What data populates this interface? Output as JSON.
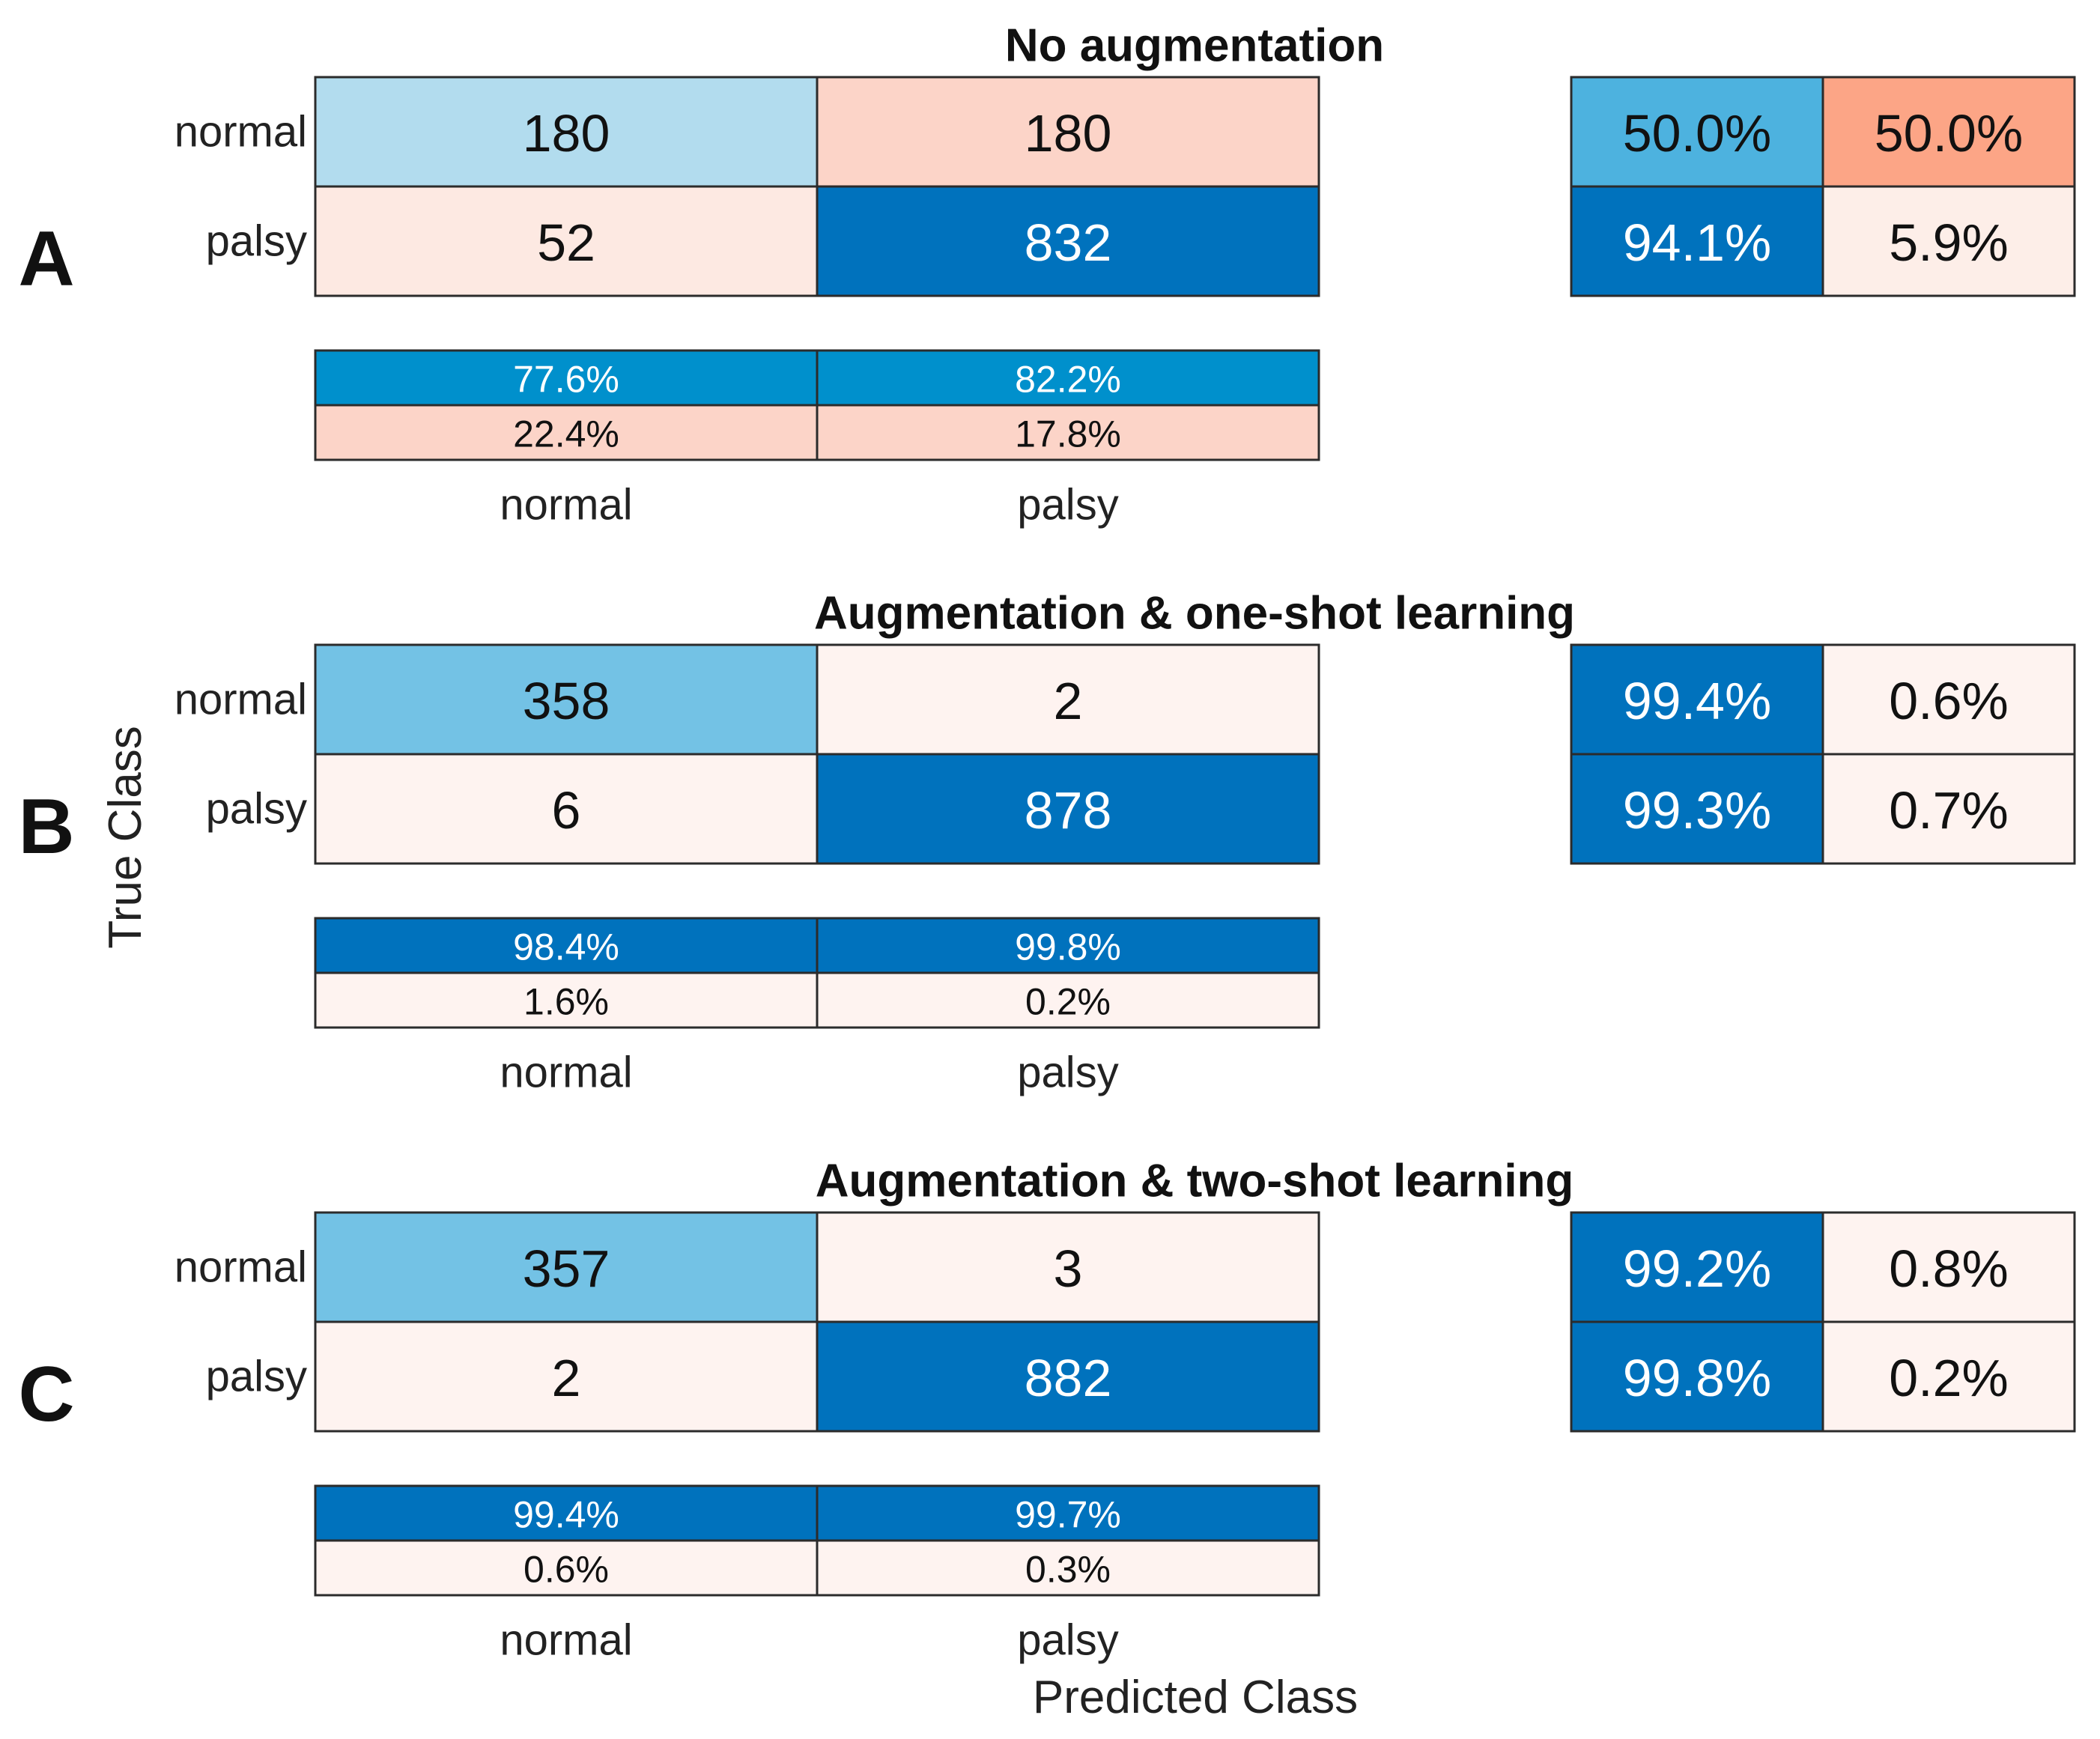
{
  "figure": {
    "y_axis_label": "True Class",
    "x_axis_label": "Predicted Class"
  },
  "colors": {
    "blue_strong": "#0072bd",
    "blue_mid": "#0090cc",
    "blue_light": "#73c2e5",
    "blue_pale": "#b2dcee",
    "blue_sat": "#4db2df",
    "red_mid": "#fca586",
    "red_light": "#fcd4c8",
    "red_pale": "#fde9e2",
    "red_faint": "#fef3f0",
    "grid_line": "#2b2b2b"
  },
  "chart_data": [
    {
      "type": "heatmap",
      "panel_label": "A",
      "title": "No augmentation",
      "ylabel": "True Class",
      "xlabel": "Predicted Class",
      "row_labels": [
        "normal",
        "palsy"
      ],
      "col_labels": [
        "normal",
        "palsy"
      ],
      "counts": [
        [
          180,
          180
        ],
        [
          52,
          832
        ]
      ],
      "count_colors": [
        [
          "#b2dcee",
          "#fcd4c8"
        ],
        [
          "#fde9e2",
          "#0072bd"
        ]
      ],
      "row_summary": [
        [
          "50.0%",
          "50.0%"
        ],
        [
          "94.1%",
          "5.9%"
        ]
      ],
      "row_summary_colors": [
        [
          "#4db2df",
          "#fca586"
        ],
        [
          "#0072bd",
          "#fdeee8"
        ]
      ],
      "col_summary": [
        [
          "77.6%",
          "82.2%"
        ],
        [
          "22.4%",
          "17.8%"
        ]
      ],
      "col_summary_colors": [
        [
          "#0090cc",
          "#0090cc"
        ],
        [
          "#fcd4c8",
          "#fcd4c8"
        ]
      ]
    },
    {
      "type": "heatmap",
      "panel_label": "B",
      "title": "Augmentation & one-shot learning",
      "ylabel": "True Class",
      "xlabel": "Predicted Class",
      "row_labels": [
        "normal",
        "palsy"
      ],
      "col_labels": [
        "normal",
        "palsy"
      ],
      "counts": [
        [
          358,
          2
        ],
        [
          6,
          878
        ]
      ],
      "count_colors": [
        [
          "#73c2e5",
          "#fef3f0"
        ],
        [
          "#fef3f0",
          "#0072bd"
        ]
      ],
      "row_summary": [
        [
          "99.4%",
          "0.6%"
        ],
        [
          "99.3%",
          "0.7%"
        ]
      ],
      "row_summary_colors": [
        [
          "#0072bd",
          "#fef3f0"
        ],
        [
          "#0072bd",
          "#fef3f0"
        ]
      ],
      "col_summary": [
        [
          "98.4%",
          "99.8%"
        ],
        [
          "1.6%",
          "0.2%"
        ]
      ],
      "col_summary_colors": [
        [
          "#0072bd",
          "#0072bd"
        ],
        [
          "#fef3f0",
          "#fef3f0"
        ]
      ]
    },
    {
      "type": "heatmap",
      "panel_label": "C",
      "title": "Augmentation & two-shot learning",
      "ylabel": "True Class",
      "xlabel": "Predicted Class",
      "row_labels": [
        "normal",
        "palsy"
      ],
      "col_labels": [
        "normal",
        "palsy"
      ],
      "counts": [
        [
          357,
          3
        ],
        [
          2,
          882
        ]
      ],
      "count_colors": [
        [
          "#73c2e5",
          "#fef3f0"
        ],
        [
          "#fef3f0",
          "#0072bd"
        ]
      ],
      "row_summary": [
        [
          "99.2%",
          "0.8%"
        ],
        [
          "99.8%",
          "0.2%"
        ]
      ],
      "row_summary_colors": [
        [
          "#0072bd",
          "#fef3f0"
        ],
        [
          "#0072bd",
          "#fef3f0"
        ]
      ],
      "col_summary": [
        [
          "99.4%",
          "99.7%"
        ],
        [
          "0.6%",
          "0.3%"
        ]
      ],
      "col_summary_colors": [
        [
          "#0072bd",
          "#0072bd"
        ],
        [
          "#fef3f0",
          "#fef3f0"
        ]
      ]
    }
  ]
}
